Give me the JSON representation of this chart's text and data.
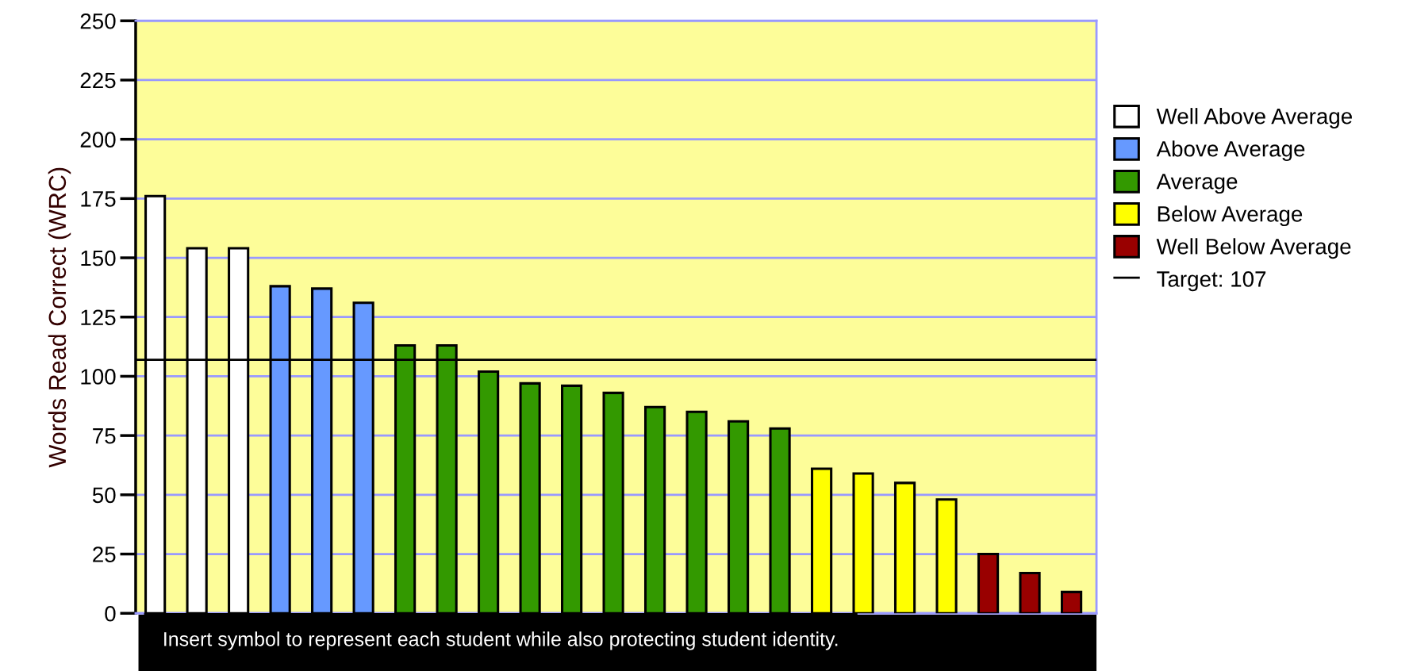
{
  "chart_data": {
    "type": "bar",
    "ylabel": "Words Read Correct (WRC)",
    "categories": [
      null,
      null,
      null,
      null,
      null,
      null,
      null,
      null,
      null,
      null,
      null,
      null,
      null,
      null,
      null,
      null,
      null,
      null,
      null,
      null,
      null,
      null,
      null
    ],
    "series": [
      {
        "name": "Well Above Average",
        "color": "#ffffff",
        "values": [
          176,
          154,
          154,
          null,
          null,
          null,
          null,
          null,
          null,
          null,
          null,
          null,
          null,
          null,
          null,
          null,
          null,
          null,
          null,
          null,
          null,
          null,
          null
        ]
      },
      {
        "name": "Above Average",
        "color": "#6699ff",
        "values": [
          null,
          null,
          null,
          138,
          137,
          131,
          null,
          null,
          null,
          null,
          null,
          null,
          null,
          null,
          null,
          null,
          null,
          null,
          null,
          null,
          null,
          null,
          null
        ]
      },
      {
        "name": "Average",
        "color": "#339900",
        "values": [
          null,
          null,
          null,
          null,
          null,
          null,
          113,
          113,
          102,
          97,
          96,
          93,
          87,
          85,
          81,
          78,
          null,
          null,
          null,
          null,
          null,
          null,
          null
        ]
      },
      {
        "name": "Below Average",
        "color": "#ffff00",
        "values": [
          null,
          null,
          null,
          null,
          null,
          null,
          null,
          null,
          null,
          null,
          null,
          null,
          null,
          null,
          null,
          null,
          61,
          59,
          55,
          48,
          null,
          null,
          null
        ]
      },
      {
        "name": "Well Below Average",
        "color": "#990000",
        "values": [
          null,
          null,
          null,
          null,
          null,
          null,
          null,
          null,
          null,
          null,
          null,
          null,
          null,
          null,
          null,
          null,
          null,
          null,
          null,
          null,
          25,
          17,
          9
        ]
      }
    ],
    "ylim": [
      0,
      250
    ],
    "yticks": [
      0,
      25,
      50,
      75,
      100,
      125,
      150,
      175,
      200,
      225,
      250
    ],
    "grid": "y",
    "legend": "right",
    "ref_lines": [
      {
        "axis": "y",
        "value": 107,
        "label": "Target: 107",
        "color": "#000000",
        "line_style": "solid"
      }
    ],
    "annotations": [
      "Insert symbol to represent each student while also protecting student identity."
    ]
  }
}
